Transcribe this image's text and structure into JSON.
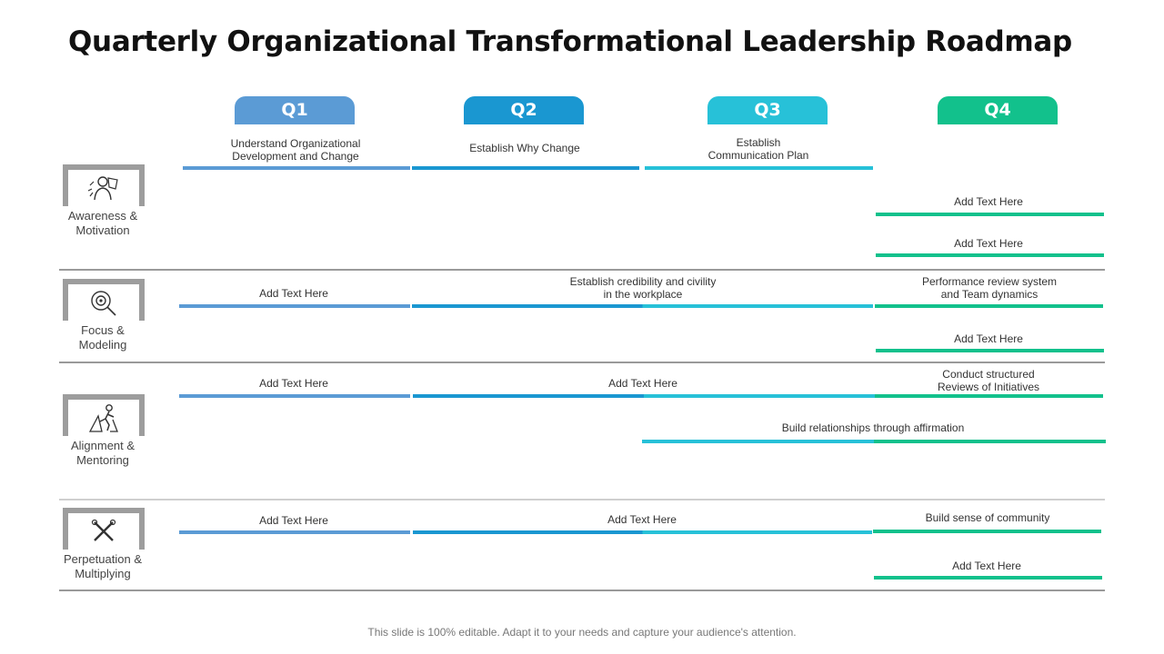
{
  "title": "Quarterly Organizational Transformational Leadership Roadmap",
  "quarters": [
    "Q1",
    "Q2",
    "Q3",
    "Q4"
  ],
  "colors": {
    "q1": "#5b9bd5",
    "q2": "#1a97d1",
    "q3": "#27c1d8",
    "q4": "#12c18c"
  },
  "rows": [
    {
      "category": {
        "line1": "Awareness &",
        "line2": "Motivation",
        "icon": "person-idea-icon"
      },
      "tasks": [
        {
          "line1": "Understand Organizational",
          "line2": "Development and Change"
        },
        {
          "line1": "Establish Why Change"
        },
        {
          "line1": "Establish",
          "line2": "Communication Plan"
        },
        {
          "line1": "Add Text Here"
        },
        {
          "line1": "Add Text Here"
        }
      ]
    },
    {
      "category": {
        "line1": "Focus &",
        "line2": "Modeling",
        "icon": "target-icon"
      },
      "tasks": [
        {
          "line1": "Add Text Here"
        },
        {
          "line1": "Establish credibility and civility",
          "line2": "in the workplace"
        },
        {
          "line1": "Performance review system",
          "line2": "and Team dynamics"
        },
        {
          "line1": "Add Text Here"
        }
      ]
    },
    {
      "category": {
        "line1": "Alignment &",
        "line2": "Mentoring",
        "icon": "climber-icon"
      },
      "tasks": [
        {
          "line1": "Add Text Here"
        },
        {
          "line1": "Add Text Here"
        },
        {
          "line1": "Conduct structured",
          "line2": "Reviews of Initiatives"
        },
        {
          "line1": "Build relationships through affirmation"
        }
      ]
    },
    {
      "category": {
        "line1": "Perpetuation &",
        "line2": "Multiplying",
        "icon": "cross-tools-icon"
      },
      "tasks": [
        {
          "line1": "Add Text Here"
        },
        {
          "line1": "Add Text Here"
        },
        {
          "line1": "Build sense of community"
        },
        {
          "line1": "Add Text Here"
        }
      ]
    }
  ],
  "footer": "This slide is 100% editable. Adapt it to your needs and capture your audience's attention."
}
